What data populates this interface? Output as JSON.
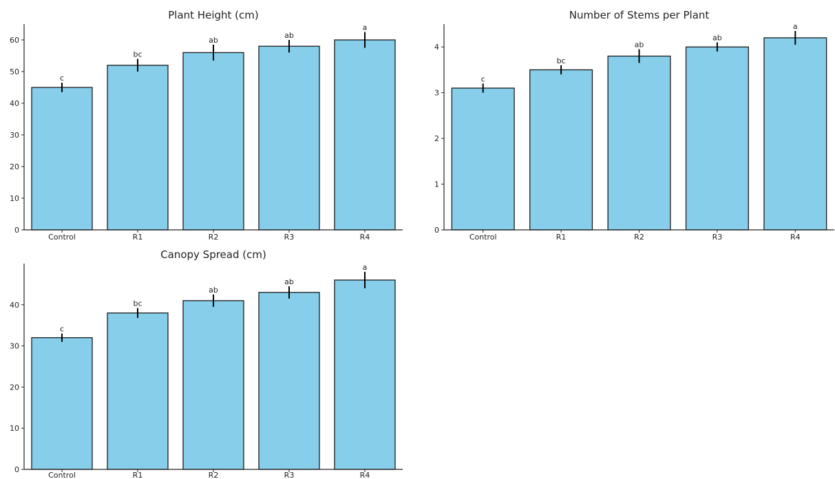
{
  "figure": {
    "background": "#ffffff",
    "bar_color": "#87CEEB",
    "bar_edge_color": "#1a1a1a",
    "error_bar_color": "#000000"
  },
  "chart_data": [
    {
      "type": "bar",
      "title": "Plant Height (cm)",
      "xlabel": "",
      "ylabel": "",
      "categories": [
        "Control",
        "R1",
        "R2",
        "R3",
        "R4"
      ],
      "values": [
        45,
        52,
        56,
        58,
        60
      ],
      "errors": [
        1.5,
        2.0,
        2.5,
        2.0,
        2.5
      ],
      "significance_labels": [
        "c",
        "bc",
        "ab",
        "ab",
        "a"
      ],
      "ylim": [
        0,
        65
      ],
      "yticks": [
        0,
        10,
        20,
        30,
        40,
        50,
        60
      ],
      "grid": false,
      "legend": "none"
    },
    {
      "type": "bar",
      "title": "Number of Stems per Plant",
      "xlabel": "",
      "ylabel": "",
      "categories": [
        "Control",
        "R1",
        "R2",
        "R3",
        "R4"
      ],
      "values": [
        3.1,
        3.5,
        3.8,
        4.0,
        4.2
      ],
      "errors": [
        0.1,
        0.1,
        0.15,
        0.1,
        0.15
      ],
      "significance_labels": [
        "c",
        "bc",
        "ab",
        "ab",
        "a"
      ],
      "ylim": [
        0,
        4.5
      ],
      "yticks": [
        0,
        1,
        2,
        3,
        4
      ],
      "grid": false,
      "legend": "none"
    },
    {
      "type": "bar",
      "title": "Canopy Spread (cm)",
      "xlabel": "",
      "ylabel": "",
      "categories": [
        "Control",
        "R1",
        "R2",
        "R3",
        "R4"
      ],
      "values": [
        32,
        38,
        41,
        43,
        46
      ],
      "errors": [
        1.0,
        1.2,
        1.5,
        1.5,
        2.0
      ],
      "significance_labels": [
        "c",
        "bc",
        "ab",
        "ab",
        "a"
      ],
      "ylim": [
        0,
        50
      ],
      "yticks": [
        0,
        10,
        20,
        30,
        40
      ],
      "grid": false,
      "legend": "none"
    }
  ]
}
